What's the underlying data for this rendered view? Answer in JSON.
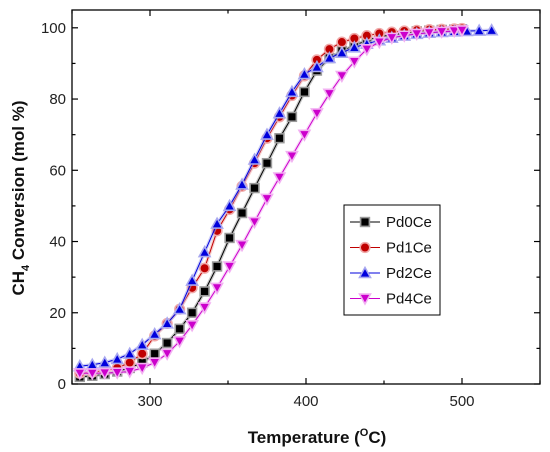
{
  "chart_data": {
    "type": "line",
    "title": "",
    "xlabel": {
      "main": "Temperature (",
      "sup": "O",
      "unit": "C)"
    },
    "ylabel": {
      "pre": "CH",
      "sub": "4",
      "post": " Conversion (mol %)"
    },
    "xlim": [
      250,
      550
    ],
    "ylim": [
      0,
      105
    ],
    "x_ticks": [
      "300",
      "400",
      "500"
    ],
    "x_tick_values": [
      300,
      400,
      500
    ],
    "y_ticks": [
      "0",
      "20",
      "40",
      "60",
      "80",
      "100"
    ],
    "y_tick_values": [
      0,
      20,
      40,
      60,
      80,
      100
    ],
    "grid": false,
    "legend_position": "right-middle",
    "series": [
      {
        "name": "Pd0Ce",
        "marker": "square",
        "color": "#000000",
        "halo": "#9a9a9a",
        "x": [
          255,
          263,
          271,
          279,
          287,
          295,
          303,
          311,
          319,
          327,
          335,
          343,
          351,
          359,
          367,
          375,
          383,
          391,
          399,
          407,
          415,
          423,
          431,
          439,
          447,
          455,
          463,
          471,
          479,
          487,
          495,
          500
        ],
        "y": [
          2,
          2.3,
          2.8,
          3.5,
          4.5,
          6,
          8.5,
          11.5,
          15.5,
          20,
          26,
          33,
          41,
          48,
          55,
          62,
          69,
          75,
          82,
          88,
          91.5,
          93.5,
          95,
          96.5,
          97.5,
          98,
          98.5,
          99,
          99.2,
          99.4,
          99.5,
          99.6
        ]
      },
      {
        "name": "Pd1Ce",
        "marker": "circle",
        "color": "#c00000",
        "halo": "#f0a8a8",
        "x": [
          255,
          263,
          271,
          279,
          287,
          295,
          303,
          311,
          319,
          327,
          335,
          343,
          351,
          359,
          367,
          375,
          383,
          391,
          399,
          407,
          415,
          423,
          431,
          439,
          447,
          455,
          463,
          471,
          479,
          487,
          495,
          500
        ],
        "y": [
          3,
          3.3,
          3.8,
          4.5,
          6,
          8.5,
          13.5,
          17,
          21,
          27,
          32.5,
          43,
          49,
          55.5,
          62,
          69,
          75,
          81,
          86.5,
          91,
          94,
          96,
          97,
          97.8,
          98.4,
          98.8,
          99.1,
          99.3,
          99.5,
          99.6,
          99.7,
          99.8
        ]
      },
      {
        "name": "Pd2Ce",
        "marker": "triangle-up",
        "color": "#0000dd",
        "halo": "#a8a8f0",
        "x": [
          255,
          263,
          271,
          279,
          287,
          295,
          303,
          311,
          319,
          327,
          335,
          343,
          351,
          359,
          367,
          375,
          383,
          391,
          399,
          407,
          415,
          423,
          431,
          439,
          447,
          455,
          463,
          471,
          479,
          487,
          495,
          503,
          511,
          519
        ],
        "y": [
          5,
          5.4,
          6,
          7,
          8.5,
          11,
          14,
          17,
          21,
          29,
          37,
          45,
          50,
          56,
          63,
          70,
          76,
          82,
          87,
          89,
          91.5,
          93,
          94.5,
          95.5,
          96.5,
          97.2,
          97.8,
          98.3,
          98.6,
          98.8,
          99,
          99.1,
          99.2,
          99.3
        ]
      },
      {
        "name": "Pd4Ce",
        "marker": "triangle-down",
        "color": "#cc00cc",
        "halo": "#f2b0f2",
        "x": [
          255,
          263,
          271,
          279,
          287,
          295,
          303,
          311,
          319,
          327,
          335,
          343,
          351,
          359,
          367,
          375,
          383,
          391,
          399,
          407,
          415,
          423,
          431,
          439,
          447,
          455,
          463,
          471,
          479,
          487,
          495,
          500
        ],
        "y": [
          3,
          3,
          3.1,
          3.2,
          3.5,
          4.5,
          6,
          8.5,
          12,
          16.5,
          21.5,
          27,
          33,
          39,
          45.5,
          52,
          58,
          64,
          70,
          76,
          81.5,
          86.5,
          90.5,
          94,
          96,
          97.2,
          97.8,
          98.3,
          98.6,
          98.9,
          99.1,
          99.3
        ]
      }
    ]
  }
}
